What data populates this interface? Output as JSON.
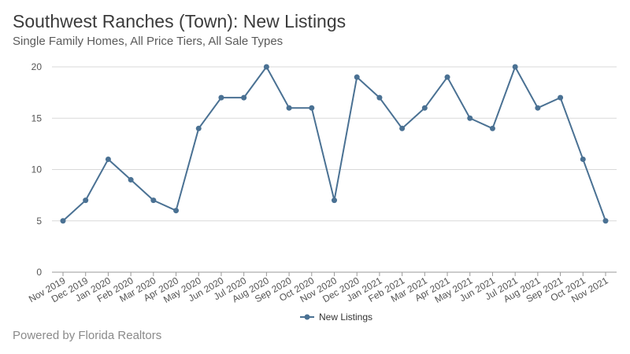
{
  "header": {
    "title": "Southwest Ranches (Town): New Listings",
    "subtitle": "Single Family Homes, All Price Tiers, All Sale Types"
  },
  "footer": {
    "text": "Powered by Florida Realtors"
  },
  "chart_data": {
    "type": "line",
    "categories": [
      "Nov 2019",
      "Dec 2019",
      "Jan 2020",
      "Feb 2020",
      "Mar 2020",
      "Apr 2020",
      "May 2020",
      "Jun 2020",
      "Jul 2020",
      "Aug 2020",
      "Sep 2020",
      "Oct 2020",
      "Nov 2020",
      "Dec 2020",
      "Jan 2021",
      "Feb 2021",
      "Mar 2021",
      "Apr 2021",
      "May 2021",
      "Jun 2021",
      "Jul 2021",
      "Aug 2021",
      "Sep 2021",
      "Oct 2021",
      "Nov 2021"
    ],
    "series": [
      {
        "name": "New Listings",
        "values": [
          5,
          7,
          11,
          9,
          7,
          6,
          14,
          17,
          17,
          20,
          16,
          16,
          7,
          19,
          17,
          14,
          16,
          19,
          15,
          14,
          20,
          16,
          17,
          11,
          5
        ],
        "color": "#4a7193"
      }
    ],
    "ylim": [
      0,
      20
    ],
    "yticks": [
      0,
      5,
      10,
      15,
      20
    ],
    "grid": true,
    "legend": "bottom-center",
    "xlabel": "",
    "ylabel": ""
  }
}
